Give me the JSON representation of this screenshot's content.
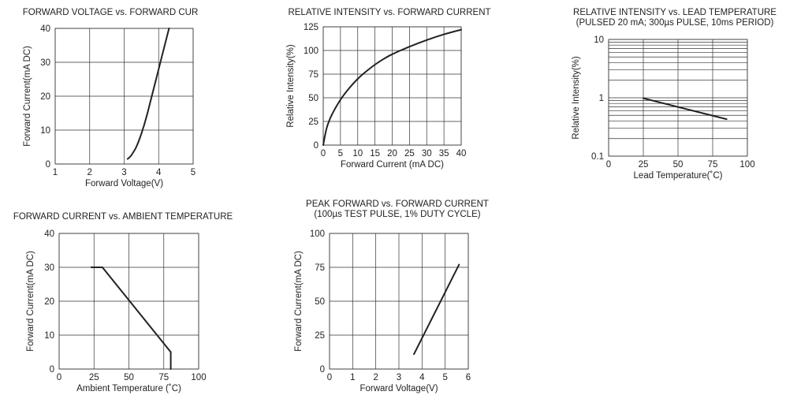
{
  "chart_data": [
    {
      "type": "line",
      "title": [
        "FORWARD VOLTAGE vs. FORWARD CUR"
      ],
      "xlabel": "Forward Voltage(V)",
      "ylabel": "Forward Current(mA DC)",
      "xlim": [
        1,
        5
      ],
      "ylim": [
        0,
        40
      ],
      "xscale": "linear",
      "yscale": "linear",
      "xticks": [
        1,
        2,
        3,
        4,
        5
      ],
      "yticks": [
        0,
        10,
        20,
        30,
        40
      ],
      "xtick_labels": [
        "1",
        "2",
        "3",
        "4",
        "5"
      ],
      "ytick_labels": [
        "0",
        "10",
        "20",
        "30",
        "40"
      ],
      "grid": true,
      "series": [
        {
          "x": [
            3.1,
            3.2,
            3.35,
            3.5,
            3.65,
            3.8,
            3.95,
            4.1,
            4.3
          ],
          "y": [
            1.5,
            2.5,
            5,
            9,
            14,
            20,
            26,
            32,
            40
          ]
        }
      ]
    },
    {
      "type": "line",
      "title": [
        "RELATIVE INTENSITY vs. FORWARD CURRENT"
      ],
      "xlabel": "Forward Current (mA DC)",
      "ylabel": "Relative Intensity(%)",
      "xlim": [
        0,
        40
      ],
      "ylim": [
        0,
        125
      ],
      "xscale": "linear",
      "yscale": "linear",
      "xticks": [
        0,
        5,
        10,
        15,
        20,
        25,
        30,
        35,
        40
      ],
      "yticks": [
        0,
        25,
        50,
        75,
        100,
        125
      ],
      "xtick_labels": [
        "0",
        "5",
        "10",
        "15",
        "20",
        "25",
        "30",
        "35",
        "40"
      ],
      "ytick_labels": [
        "0",
        "25",
        "50",
        "75",
        "100",
        "125"
      ],
      "grid": true,
      "series": [
        {
          "x": [
            0,
            1,
            2.5,
            5,
            7.5,
            10,
            12.5,
            15,
            17.5,
            20,
            25,
            30,
            35,
            40
          ],
          "y": [
            0,
            18,
            32,
            48,
            60,
            70,
            78,
            85,
            91,
            96,
            104,
            111,
            117,
            122
          ]
        }
      ]
    },
    {
      "type": "line",
      "title": [
        "RELATIVE INTENSITY vs. LEAD TEMPERATURE",
        "(PULSED 20 mA; 300µs PULSE, 10ms PERIOD)"
      ],
      "xlabel": "Lead Temperature(˚C)",
      "ylabel": "Relative Intensity(%)",
      "xlim": [
        0,
        100
      ],
      "ylim": [
        0.1,
        10
      ],
      "xscale": "linear",
      "yscale": "log",
      "xticks": [
        0,
        25,
        50,
        75,
        100
      ],
      "yticks": [
        0.1,
        1,
        10
      ],
      "xtick_labels": [
        "0",
        "25",
        "50",
        "75",
        "100"
      ],
      "ytick_labels": [
        "0.1",
        "1",
        "10"
      ],
      "grid": true,
      "series": [
        {
          "x": [
            25,
            85
          ],
          "y": [
            0.98,
            0.43
          ]
        }
      ]
    },
    {
      "type": "line",
      "title": [
        "FORWARD CURRENT vs. AMBIENT TEMPERATURE"
      ],
      "xlabel": "Ambient Temperature (˚C)",
      "ylabel": "Forward Current(mA DC)",
      "xlim": [
        0,
        100
      ],
      "ylim": [
        0,
        40
      ],
      "xscale": "linear",
      "yscale": "linear",
      "xticks": [
        0,
        25,
        50,
        75,
        100
      ],
      "yticks": [
        0,
        10,
        20,
        30,
        40
      ],
      "xtick_labels": [
        "0",
        "25",
        "50",
        "75",
        "100"
      ],
      "ytick_labels": [
        "0",
        "10",
        "20",
        "30",
        "40"
      ],
      "grid": true,
      "series": [
        {
          "x": [
            23,
            31,
            80,
            80
          ],
          "y": [
            30,
            30,
            5,
            0
          ]
        }
      ]
    },
    {
      "type": "line",
      "title": [
        "PEAK FORWARD vs. FORWARD CURRENT",
        "(100µs TEST PULSE, 1% DUTY CYCLE)"
      ],
      "xlabel": "Forward Voltage(V)",
      "ylabel": "Forward Current(mA DC)",
      "xlim": [
        0,
        6
      ],
      "ylim": [
        0,
        100
      ],
      "xscale": "linear",
      "yscale": "linear",
      "xticks": [
        0,
        1,
        2,
        3,
        4,
        5,
        6
      ],
      "yticks": [
        0,
        25,
        50,
        75,
        100
      ],
      "xtick_labels": [
        "0",
        "1",
        "2",
        "3",
        "4",
        "5",
        "6"
      ],
      "ytick_labels": [
        "0",
        "25",
        "50",
        "75",
        "100"
      ],
      "grid": true,
      "series": [
        {
          "x": [
            3.65,
            5.6
          ],
          "y": [
            11,
            77
          ]
        }
      ]
    }
  ]
}
